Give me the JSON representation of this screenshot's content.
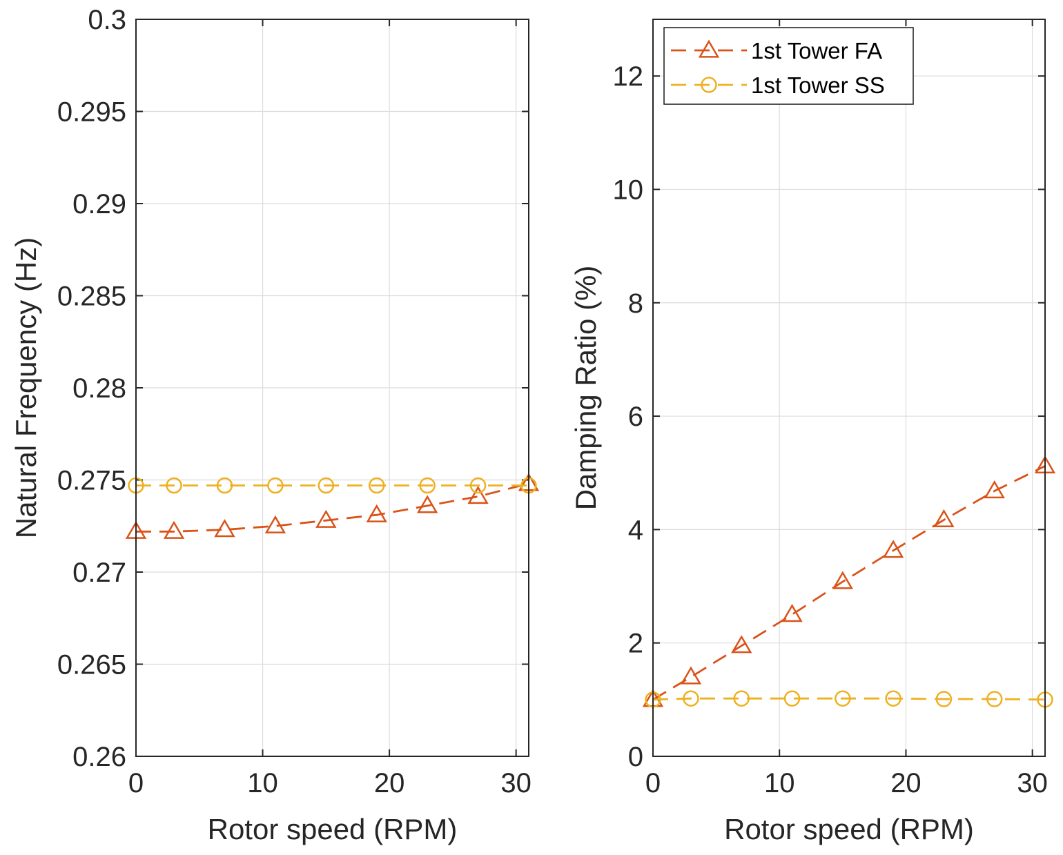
{
  "chart_data": [
    {
      "type": "line",
      "xlabel": "Rotor speed (RPM)",
      "ylabel": "Natural Frequency (Hz)",
      "xlim": [
        0,
        31
      ],
      "ylim": [
        0.26,
        0.3
      ],
      "xticks": [
        "0",
        "10",
        "20",
        "30"
      ],
      "yticks": [
        "0.26",
        "0.265",
        "0.27",
        "0.275",
        "0.28",
        "0.285",
        "0.29",
        "0.295",
        "0.3"
      ],
      "grid": true,
      "legend": null,
      "series": [
        {
          "key": "fa",
          "color": "#D95319",
          "marker": "triangle",
          "line": "dashed",
          "x": [
            0,
            3,
            7,
            11,
            15,
            19,
            23,
            27,
            31
          ],
          "y": [
            0.2722,
            0.2722,
            0.2723,
            0.2725,
            0.2728,
            0.2731,
            0.2736,
            0.2741,
            0.2748
          ]
        },
        {
          "key": "ss",
          "color": "#EDB120",
          "marker": "circle",
          "line": "dashed",
          "x": [
            0,
            3,
            7,
            11,
            15,
            19,
            23,
            27,
            31
          ],
          "y": [
            0.2747,
            0.2747,
            0.2747,
            0.2747,
            0.2747,
            0.2747,
            0.2747,
            0.2747,
            0.2747
          ]
        }
      ]
    },
    {
      "type": "line",
      "xlabel": "Rotor speed (RPM)",
      "ylabel": "Damping Ratio (%)",
      "xlim": [
        0,
        31
      ],
      "ylim": [
        0,
        13
      ],
      "xticks": [
        "0",
        "10",
        "20",
        "30"
      ],
      "yticks": [
        "0",
        "2",
        "4",
        "6",
        "8",
        "10",
        "12"
      ],
      "grid": true,
      "legend": "top-left",
      "series": [
        {
          "key": "fa",
          "name": "1st Tower FA",
          "color": "#D95319",
          "marker": "triangle",
          "line": "dashed",
          "x": [
            0,
            3,
            7,
            11,
            15,
            19,
            23,
            27,
            31
          ],
          "y": [
            1.0,
            1.4,
            1.95,
            2.5,
            3.08,
            3.63,
            4.17,
            4.68,
            5.12
          ]
        },
        {
          "key": "ss",
          "name": "1st Tower SS",
          "color": "#EDB120",
          "marker": "circle",
          "line": "dashed",
          "x": [
            0,
            3,
            7,
            11,
            15,
            19,
            23,
            27,
            31
          ],
          "y": [
            1.0,
            1.02,
            1.02,
            1.02,
            1.02,
            1.02,
            1.01,
            1.01,
            1.0
          ]
        }
      ]
    }
  ]
}
